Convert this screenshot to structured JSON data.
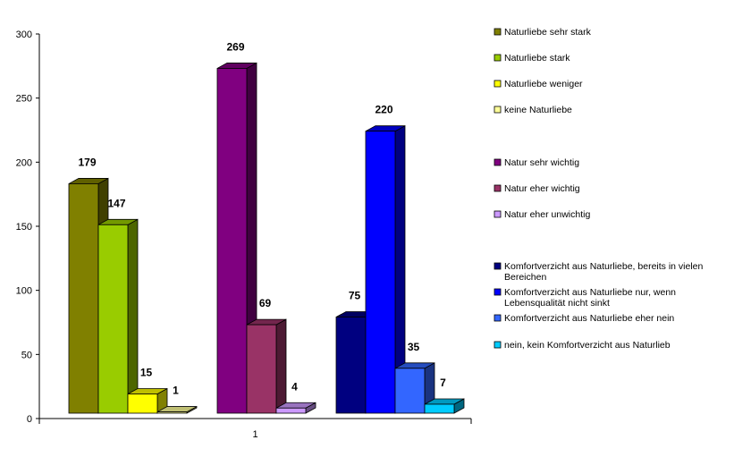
{
  "chart_data": {
    "type": "bar",
    "categories": [
      "1"
    ],
    "ylim": [
      0,
      300
    ],
    "yticks": [
      0,
      50,
      100,
      150,
      200,
      250,
      300
    ],
    "grid": false,
    "legend_position": "right",
    "groups": [
      {
        "series": [
          {
            "name": "Naturliebe sehr stark",
            "value": 179,
            "color": "#808000"
          },
          {
            "name": "Naturliebe stark",
            "value": 147,
            "color": "#99cc00"
          },
          {
            "name": "Naturliebe weniger",
            "value": 15,
            "color": "#ffff00"
          },
          {
            "name": "keine Naturliebe",
            "value": 1,
            "color": "#ffff99"
          }
        ]
      },
      {
        "series": [
          {
            "name": "Natur sehr wichtig",
            "value": 269,
            "color": "#800080"
          },
          {
            "name": "Natur eher wichtig",
            "value": 69,
            "color": "#993366"
          },
          {
            "name": "Natur eher unwichtig",
            "value": 4,
            "color": "#cc99ff"
          }
        ]
      },
      {
        "series": [
          {
            "name": "Komfortverzicht aus Naturliebe, bereits in vielen Bereichen",
            "value": 75,
            "color": "#000080"
          },
          {
            "name": "Komfortverzicht aus Naturliebe nur, wenn Lebensqualität nicht sinkt",
            "value": 220,
            "color": "#0000ff"
          },
          {
            "name": "Komfortverzicht aus Naturliebe eher nein",
            "value": 35,
            "color": "#3366ff"
          },
          {
            "name": "nein, kein Komfortverzicht aus Naturlieb",
            "value": 7,
            "color": "#00ccff"
          }
        ]
      }
    ]
  }
}
